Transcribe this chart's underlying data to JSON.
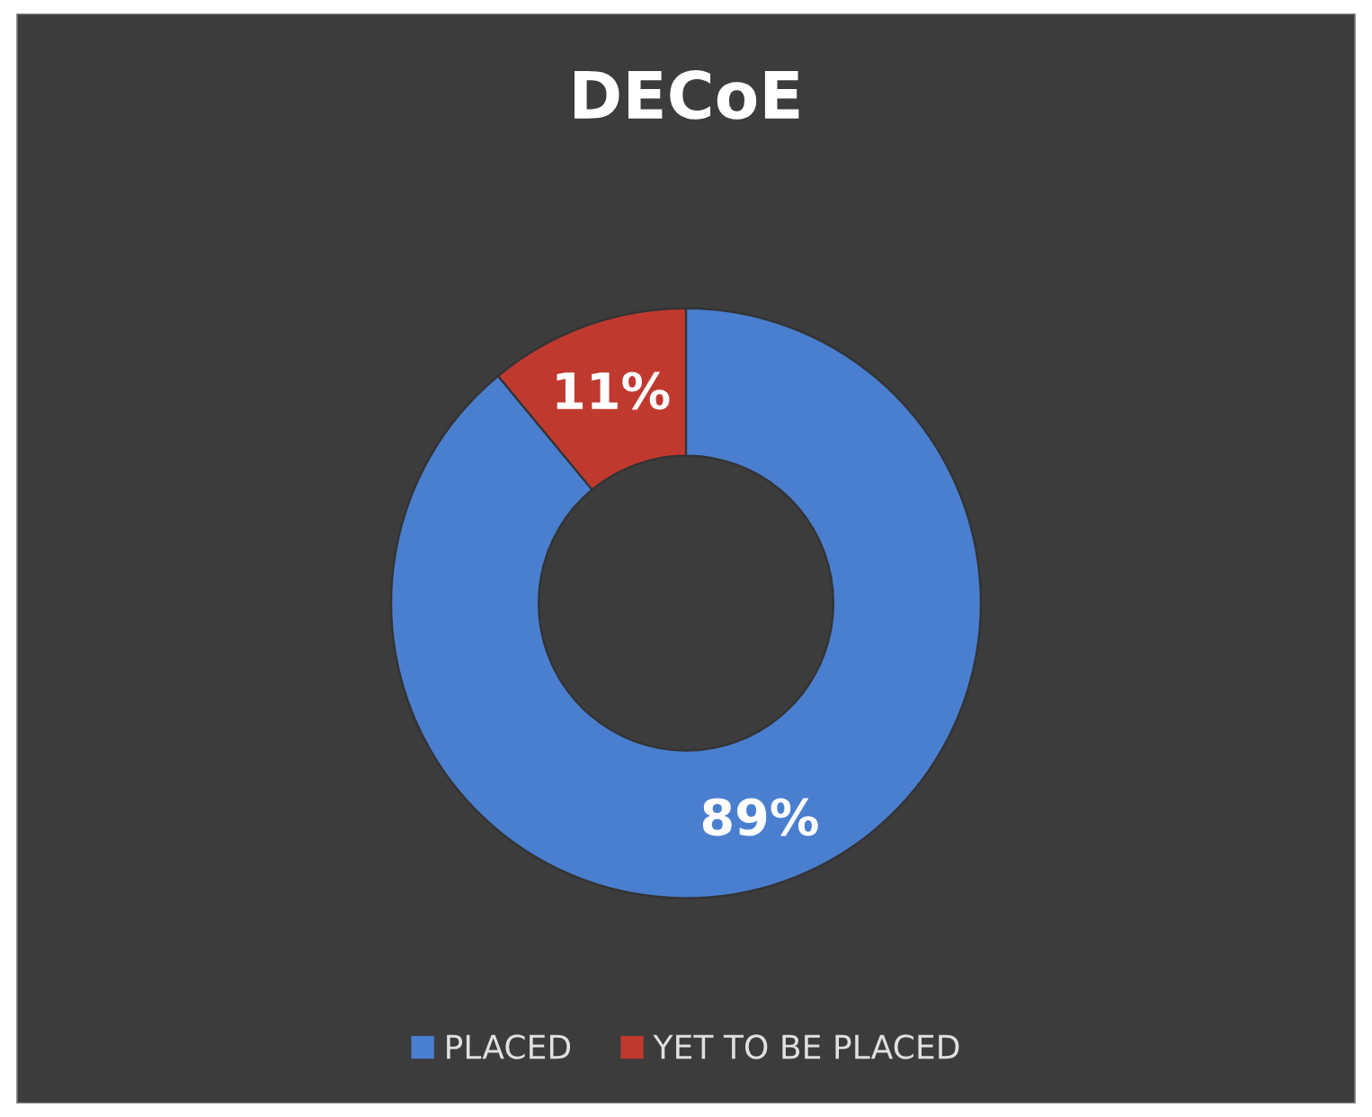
{
  "chart_data": {
    "type": "donut",
    "title": "DECoE",
    "categories": [
      "PLACED",
      "YET TO BE PLACED"
    ],
    "values": [
      89,
      11
    ],
    "colors": [
      "#4a7fd0",
      "#c0392f"
    ],
    "value_labels": [
      "89%",
      "11%"
    ],
    "legend": "bottom"
  }
}
